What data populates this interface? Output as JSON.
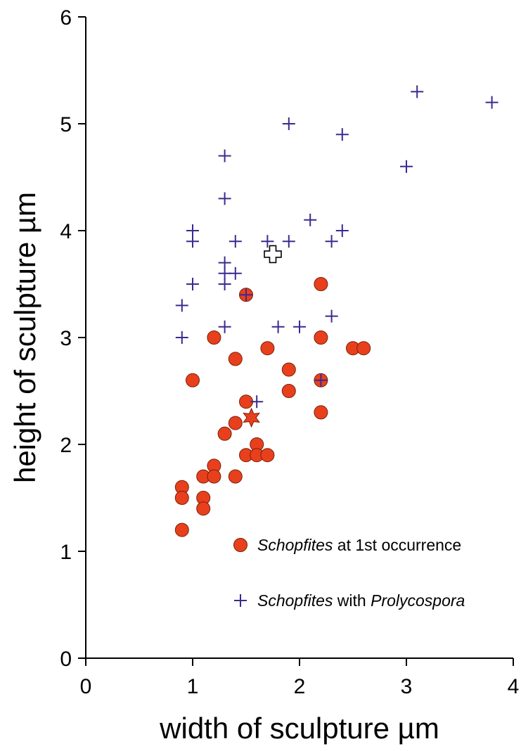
{
  "chart_data": {
    "type": "scatter",
    "title": "",
    "xlabel": "width of sculpture µm",
    "ylabel": "height of sculpture µm",
    "xlim": [
      0,
      4
    ],
    "ylim": [
      0,
      6
    ],
    "x_ticks": [
      "0",
      "1",
      "2",
      "3",
      "4"
    ],
    "y_ticks": [
      "0",
      "1",
      "2",
      "3",
      "4",
      "5",
      "6"
    ],
    "grid": false,
    "legend_position": "bottom-right",
    "series": [
      {
        "marker": "circle",
        "color": "#e8401c",
        "legend": {
          "italic": "Schopfites",
          "rest": " at 1st occurrence"
        },
        "points": [
          [
            0.9,
            1.6
          ],
          [
            0.9,
            1.5
          ],
          [
            0.9,
            1.2
          ],
          [
            1.1,
            1.7
          ],
          [
            1.1,
            1.5
          ],
          [
            1.1,
            1.4
          ],
          [
            1.2,
            1.8
          ],
          [
            1.2,
            1.7
          ],
          [
            1.0,
            2.6
          ],
          [
            1.2,
            3.0
          ],
          [
            1.3,
            2.1
          ],
          [
            1.4,
            2.2
          ],
          [
            1.4,
            2.8
          ],
          [
            1.4,
            1.7
          ],
          [
            1.5,
            2.4
          ],
          [
            1.5,
            1.9
          ],
          [
            1.5,
            3.4
          ],
          [
            1.6,
            2.0
          ],
          [
            1.6,
            1.9
          ],
          [
            1.7,
            1.9
          ],
          [
            1.7,
            2.9
          ],
          [
            1.9,
            2.7
          ],
          [
            1.9,
            2.5
          ],
          [
            2.2,
            3.5
          ],
          [
            2.2,
            3.0
          ],
          [
            2.2,
            2.6
          ],
          [
            2.2,
            2.3
          ],
          [
            2.5,
            2.9
          ],
          [
            2.6,
            2.9
          ]
        ]
      },
      {
        "marker": "plus",
        "color": "#3b2a8f",
        "legend": {
          "italic": "Schopfites",
          "rest": " with ",
          "italic2": "Prolycospora"
        },
        "points": [
          [
            0.9,
            3.3
          ],
          [
            0.9,
            3.0
          ],
          [
            1.0,
            4.0
          ],
          [
            1.0,
            3.9
          ],
          [
            1.0,
            3.5
          ],
          [
            1.3,
            4.7
          ],
          [
            1.3,
            4.3
          ],
          [
            1.3,
            3.7
          ],
          [
            1.3,
            3.6
          ],
          [
            1.3,
            3.5
          ],
          [
            1.3,
            3.1
          ],
          [
            1.4,
            3.9
          ],
          [
            1.4,
            3.6
          ],
          [
            1.5,
            3.4
          ],
          [
            1.6,
            2.4
          ],
          [
            1.7,
            3.9
          ],
          [
            1.8,
            3.1
          ],
          [
            1.9,
            5.0
          ],
          [
            1.9,
            3.9
          ],
          [
            2.0,
            3.1
          ],
          [
            2.1,
            4.1
          ],
          [
            2.2,
            2.6
          ],
          [
            2.3,
            3.9
          ],
          [
            2.3,
            3.2
          ],
          [
            2.4,
            4.9
          ],
          [
            2.4,
            4.0
          ],
          [
            3.0,
            4.6
          ],
          [
            3.1,
            5.3
          ],
          [
            3.8,
            5.2
          ]
        ]
      }
    ],
    "special_markers": [
      {
        "marker": "star",
        "color": "#e8401c",
        "x": 1.55,
        "y": 2.25
      },
      {
        "marker": "open-cross",
        "color": "#ffffff",
        "x": 1.75,
        "y": 3.78
      }
    ]
  }
}
